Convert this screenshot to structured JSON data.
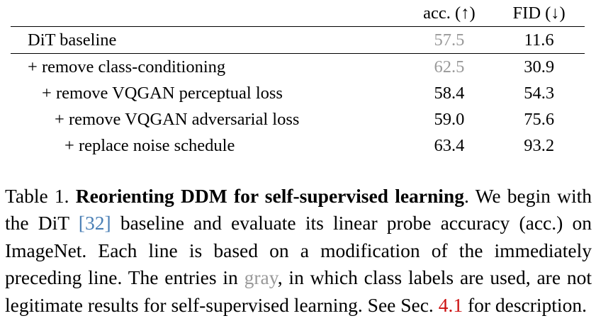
{
  "table": {
    "header": {
      "method": "",
      "acc": "acc. (↑)",
      "fid": "FID (↓)"
    },
    "rows": [
      {
        "method": "DiT baseline",
        "acc": "57.5",
        "fid": "11.6",
        "acc_gray": true
      },
      {
        "method": "+ remove class-conditioning",
        "acc": "62.5",
        "fid": "30.9",
        "acc_gray": true
      },
      {
        "method": "+ remove VQGAN perceptual loss",
        "acc": "58.4",
        "fid": "54.3",
        "acc_gray": false
      },
      {
        "method": "+ remove VQGAN adversarial loss",
        "acc": "59.0",
        "fid": "75.6",
        "acc_gray": false
      },
      {
        "method": "+ replace noise schedule",
        "acc": "63.4",
        "fid": "93.2",
        "acc_gray": false
      }
    ]
  },
  "caption": {
    "label": "Table 1.",
    "title": "Reorienting DDM for self-supervised learning",
    "part1": ". We begin with the DiT ",
    "ref1": "[32]",
    "part2": " baseline and evaluate its linear probe accuracy (acc.) on ImageNet. Each line is based on a modification of the immediately preceding line. The entries in ",
    "gray_word": "gray",
    "part3": ", in which class labels are used, are not legitimate results for self-supervised learning. See Sec. ",
    "ref2": "4.1",
    "part4": " for description."
  },
  "colors": {
    "gray_text": "#999999",
    "citation_blue": "#4a7fb5",
    "section_link_red": "#cc1111"
  }
}
